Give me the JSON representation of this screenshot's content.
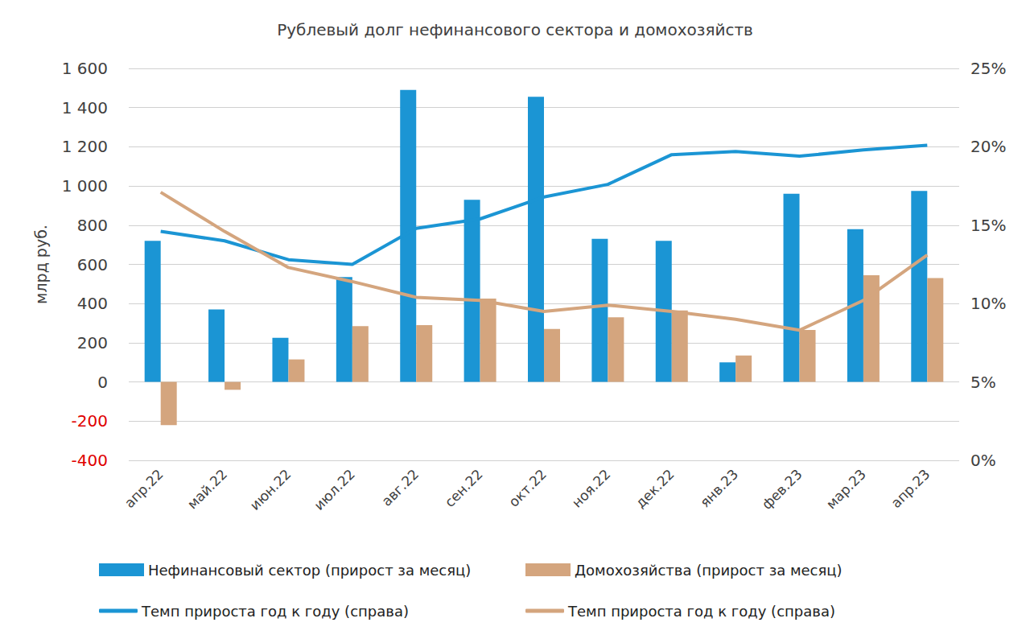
{
  "chart_data": {
    "type": "bar",
    "title": "Рублевый долг нефинансового сектора и домохозяйств",
    "ylabel": "млрд руб.",
    "categories": [
      "апр.22",
      "май.22",
      "июн.22",
      "июл.22",
      "авг.22",
      "сен.22",
      "окт.22",
      "ноя.22",
      "дек.22",
      "янв.23",
      "фев.23",
      "мар.23",
      "апр.23"
    ],
    "series": [
      {
        "name": "Нефинансовый сектор (прирост за месяц)",
        "color": "#1b95d4",
        "type": "bar",
        "values": [
          720,
          370,
          225,
          535,
          1490,
          930,
          1455,
          730,
          720,
          100,
          960,
          780,
          975
        ]
      },
      {
        "name": "Домохозяйства (прирост за месяц)",
        "color": "#d4a57e",
        "type": "bar",
        "values": [
          -220,
          -40,
          115,
          285,
          290,
          425,
          270,
          330,
          365,
          135,
          265,
          545,
          530
        ]
      },
      {
        "name": "Темп прироста год к году (справа)",
        "color": "#1b95d4",
        "type": "line",
        "axis": "y2",
        "marker": "none",
        "values": [
          14.6,
          14.0,
          12.8,
          12.5,
          14.8,
          15.4,
          16.8,
          17.6,
          19.5,
          19.7,
          19.4,
          19.8,
          20.1
        ]
      },
      {
        "name": "Темп прироста год к году (справа)",
        "color": "#d4a57e",
        "type": "line",
        "axis": "y2",
        "marker": "none",
        "values": [
          17.1,
          14.6,
          12.3,
          11.4,
          10.4,
          10.2,
          9.5,
          9.9,
          9.5,
          9.0,
          8.3,
          10.2,
          13.1
        ]
      }
    ],
    "ylim": [
      -400,
      1600
    ],
    "yticks": [
      -400,
      -200,
      0,
      200,
      400,
      600,
      800,
      {
        "value": 1000,
        "label": "1 000"
      },
      {
        "value": 1200,
        "label": "1 200"
      },
      {
        "value": 1400,
        "label": "1 400"
      },
      {
        "value": 1600,
        "label": "1 600"
      }
    ],
    "y2lim": [
      0,
      25
    ],
    "y2ticks": [
      {
        "value": 0,
        "label": "0%"
      },
      {
        "value": 5,
        "label": "5%"
      },
      {
        "value": 10,
        "label": "10%"
      },
      {
        "value": 15,
        "label": "15%"
      },
      {
        "value": 20,
        "label": "20%"
      },
      {
        "value": 25,
        "label": "25%"
      }
    ],
    "grid": true,
    "legend": "bottom"
  }
}
